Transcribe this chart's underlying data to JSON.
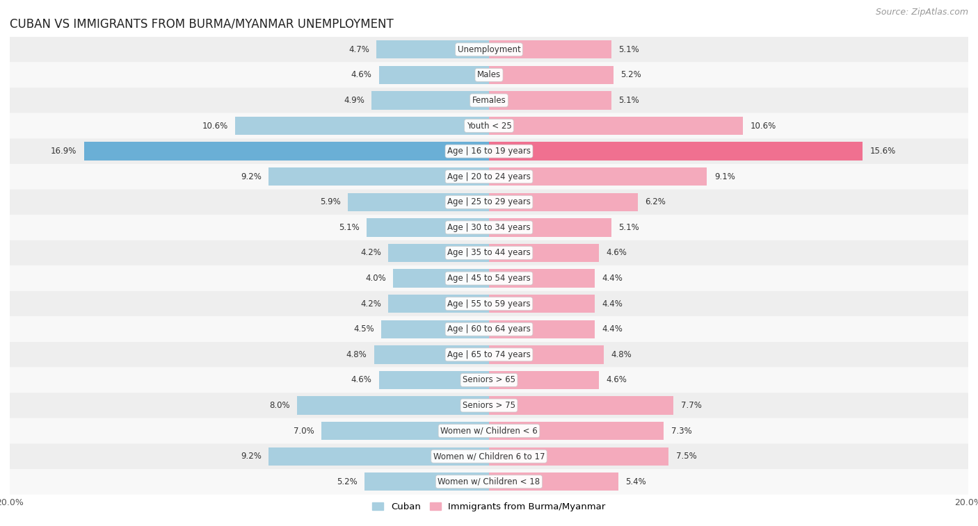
{
  "title": "CUBAN VS IMMIGRANTS FROM BURMA/MYANMAR UNEMPLOYMENT",
  "source": "Source: ZipAtlas.com",
  "categories": [
    "Unemployment",
    "Males",
    "Females",
    "Youth < 25",
    "Age | 16 to 19 years",
    "Age | 20 to 24 years",
    "Age | 25 to 29 years",
    "Age | 30 to 34 years",
    "Age | 35 to 44 years",
    "Age | 45 to 54 years",
    "Age | 55 to 59 years",
    "Age | 60 to 64 years",
    "Age | 65 to 74 years",
    "Seniors > 65",
    "Seniors > 75",
    "Women w/ Children < 6",
    "Women w/ Children 6 to 17",
    "Women w/ Children < 18"
  ],
  "cuban": [
    4.7,
    4.6,
    4.9,
    10.6,
    16.9,
    9.2,
    5.9,
    5.1,
    4.2,
    4.0,
    4.2,
    4.5,
    4.8,
    4.6,
    8.0,
    7.0,
    9.2,
    5.2
  ],
  "myanmar": [
    5.1,
    5.2,
    5.1,
    10.6,
    15.6,
    9.1,
    6.2,
    5.1,
    4.6,
    4.4,
    4.4,
    4.4,
    4.8,
    4.6,
    7.7,
    7.3,
    7.5,
    5.4
  ],
  "cuban_color": "#a8cfe0",
  "myanmar_color": "#f4aabc",
  "cuban_highlight_color": "#6aafd6",
  "myanmar_highlight_color": "#f07090",
  "row_bg_odd": "#eeeeee",
  "row_bg_even": "#f8f8f8",
  "max_value": 20.0,
  "legend_cuban": "Cuban",
  "legend_myanmar": "Immigrants from Burma/Myanmar",
  "title_fontsize": 12,
  "source_fontsize": 9,
  "cat_fontsize": 8.5,
  "value_fontsize": 8.5,
  "highlight_row": 4,
  "figwidth": 14.06,
  "figheight": 7.57,
  "dpi": 100
}
